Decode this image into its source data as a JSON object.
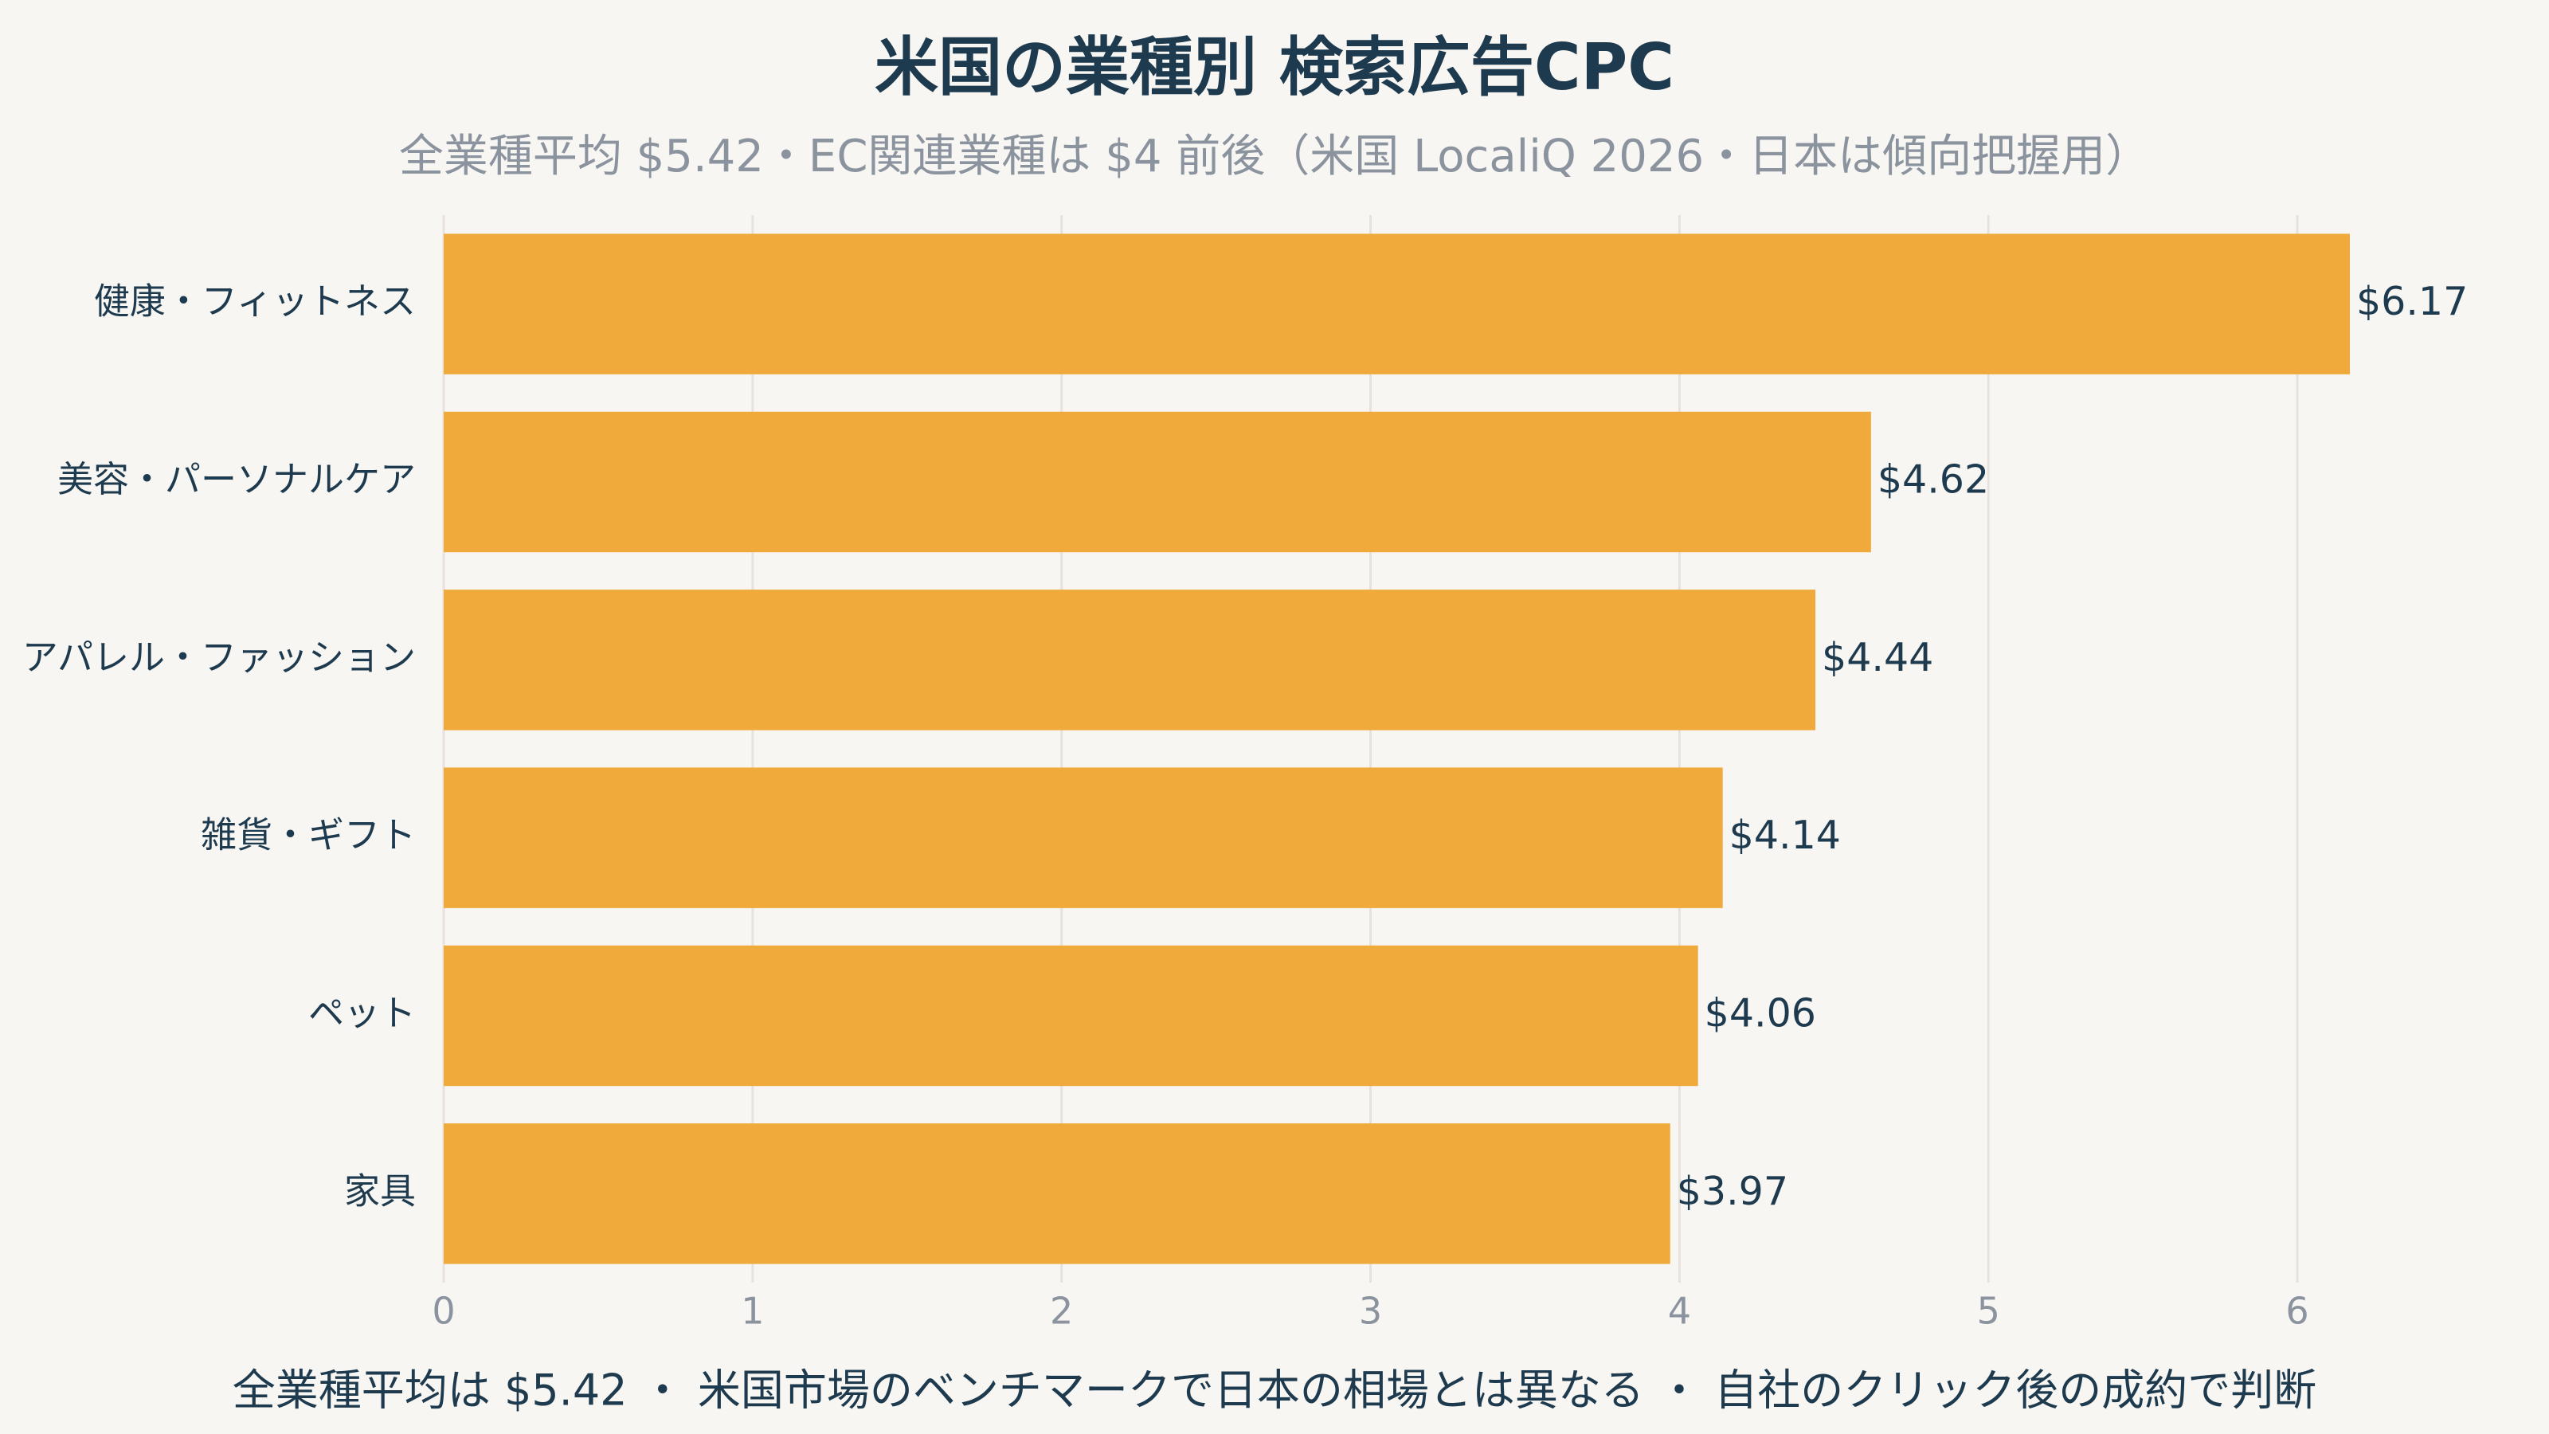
{
  "chart_data": {
    "type": "barh",
    "title": "米国の業種別 検索広告CPC",
    "subtitle": "全業種平均 $5.42・EC関連業種は $4 前後（米国 LocaliQ 2026・日本は傾向把握用）",
    "categories": [
      "健康・フィットネス",
      "美容・パーソナルケア",
      "アパレル・ファッション",
      "雑貨・ギフト",
      "ペット",
      "家具"
    ],
    "values": [
      6.17,
      4.62,
      4.44,
      4.14,
      4.06,
      3.97
    ],
    "value_labels": [
      "$6.17",
      "$4.62",
      "$4.44",
      "$4.14",
      "$4.06",
      "$3.97"
    ],
    "color": "#f0a93b",
    "xlim": [
      0,
      6.5
    ],
    "xticks": [
      0,
      1,
      2,
      3,
      4,
      5,
      6
    ],
    "grid": true,
    "annotation": "全業種平均は $5.42 ・ 米国市場のベンチマークで日本の相場とは異なる ・ 自社のクリック後の成約で判断"
  }
}
